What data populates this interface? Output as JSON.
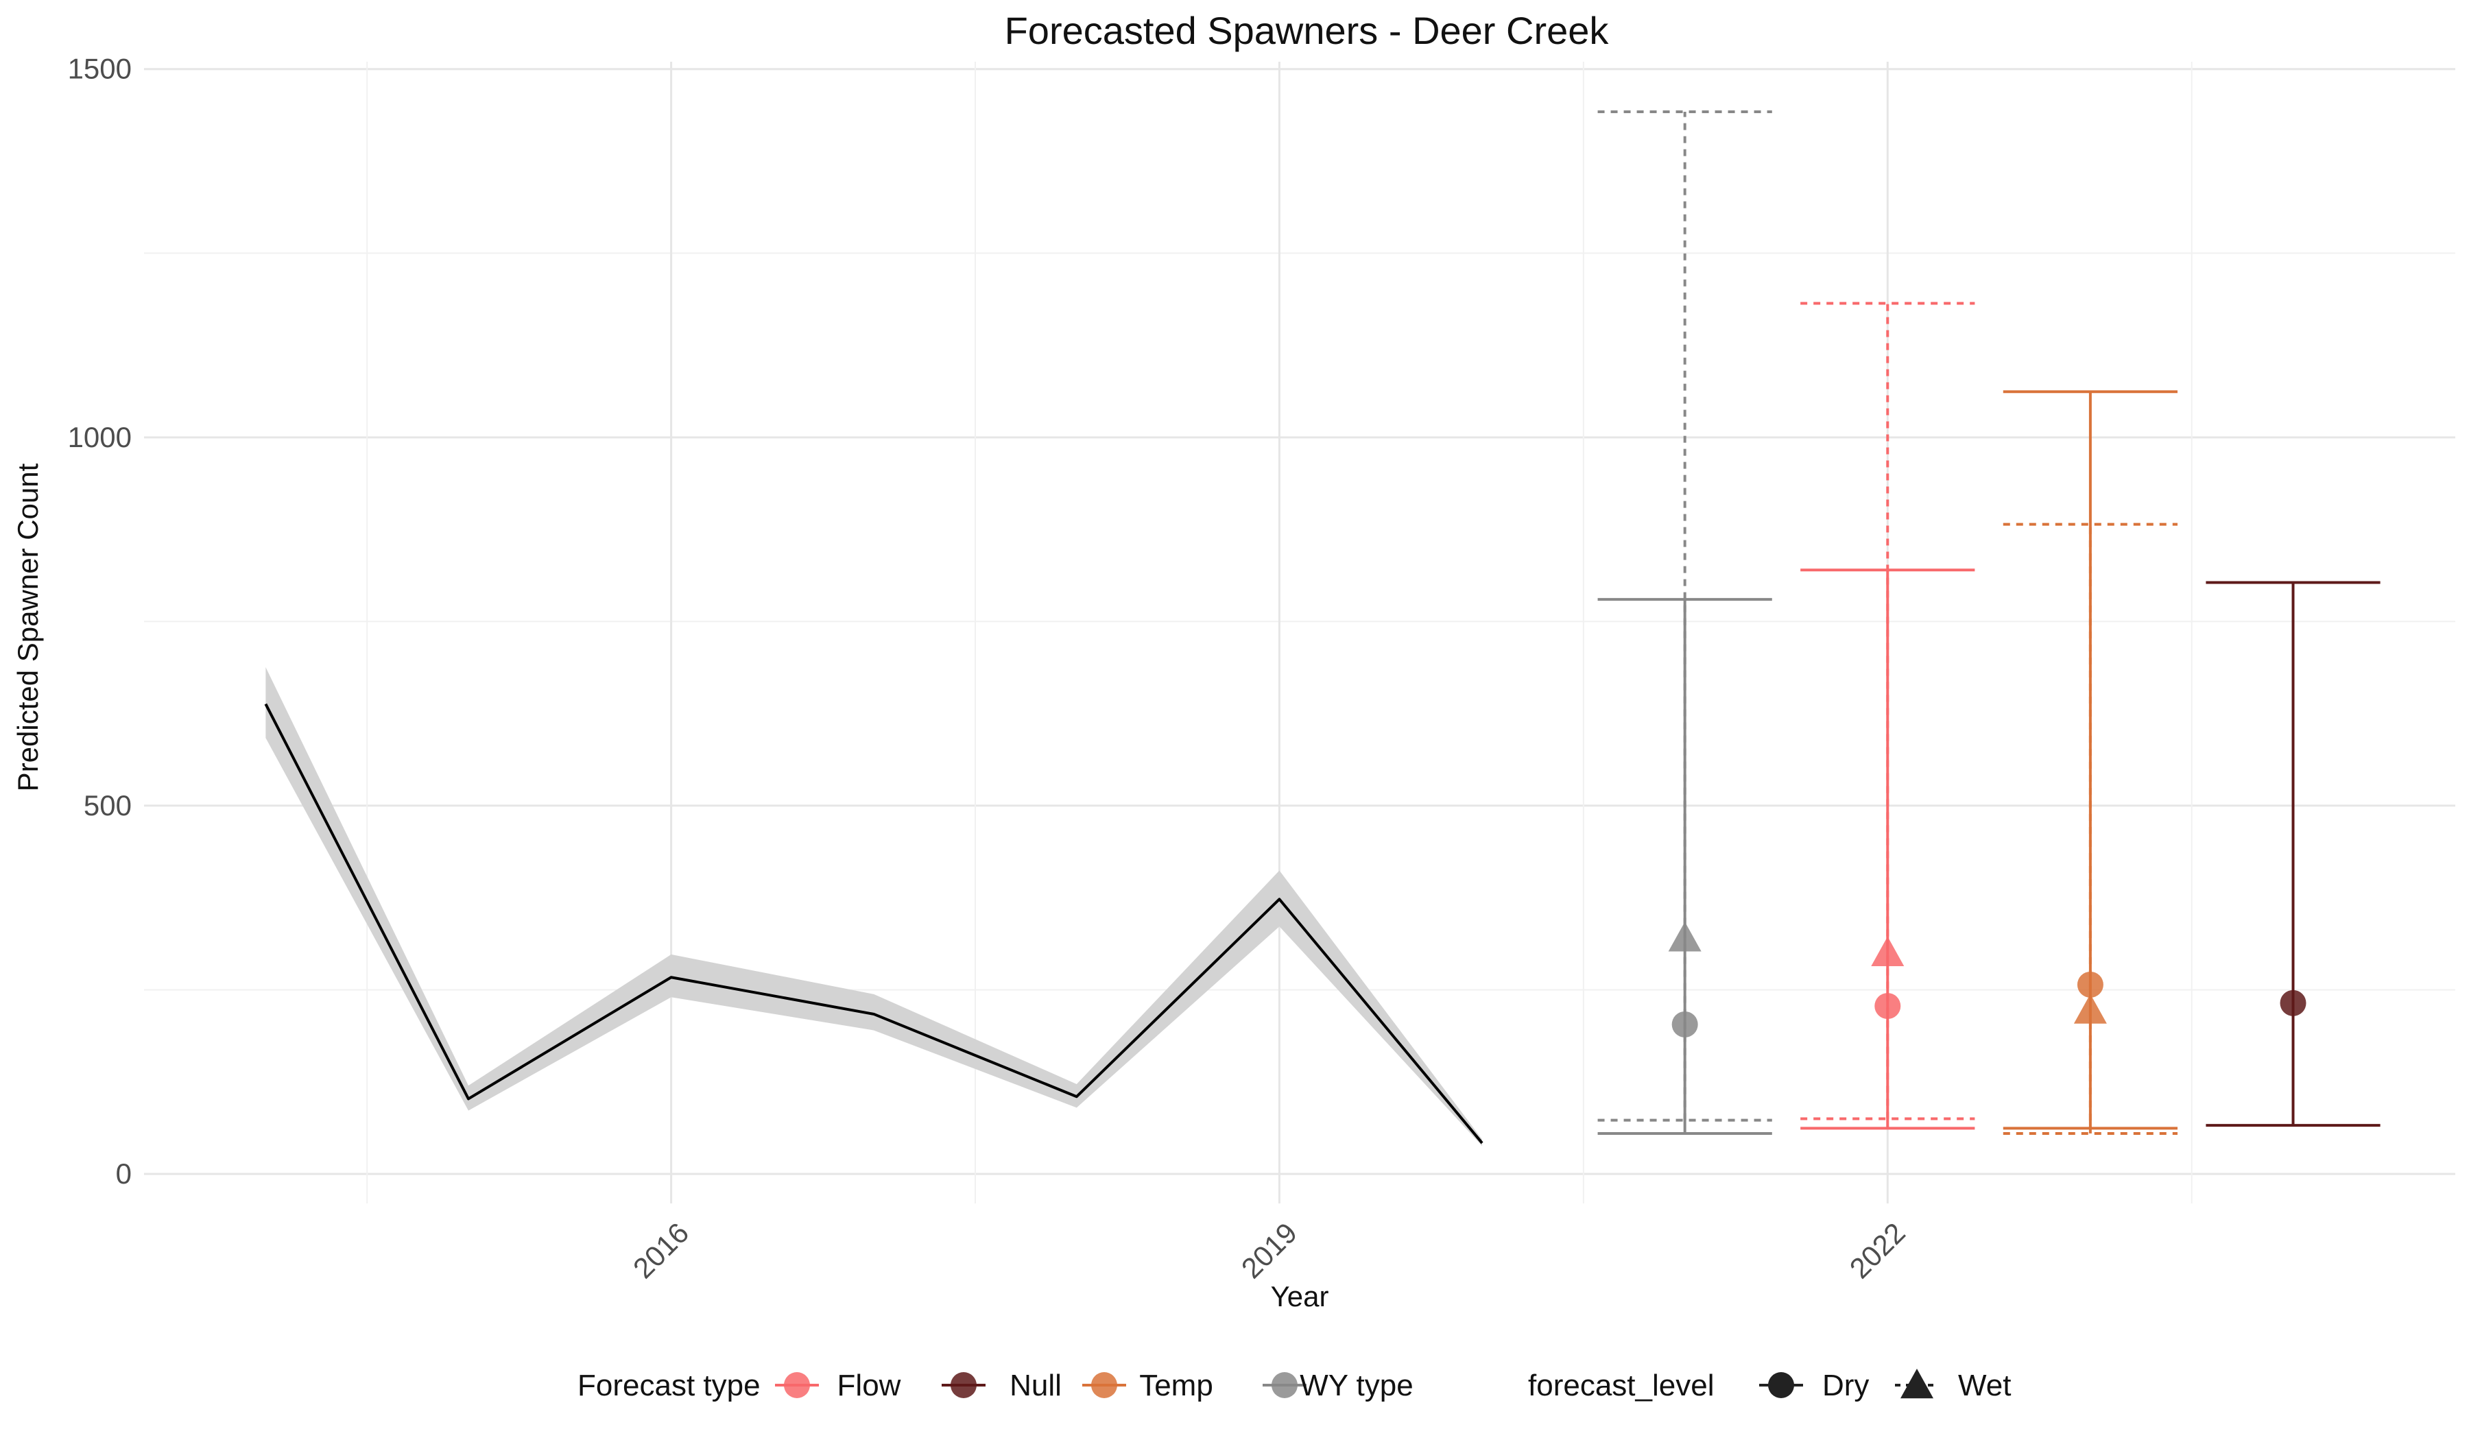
{
  "chart_data": {
    "type": "line",
    "title": "Forecasted Spawners - Deer Creek",
    "xlabel": "Year",
    "ylabel": "Predicted Spawner Count",
    "xlim": [
      2013.4,
      2024.8
    ],
    "ylim": [
      -40,
      1510
    ],
    "x_ticks": [
      2016,
      2019,
      2022
    ],
    "x_tick_labels": [
      "2016",
      "2019",
      "2022"
    ],
    "y_ticks": [
      0,
      500,
      1000,
      1500
    ],
    "y_tick_labels": [
      "0",
      "500",
      "1000",
      "1500"
    ],
    "grid": true,
    "legend_position": "bottom",
    "observed": {
      "x": [
        2014,
        2015,
        2016,
        2017,
        2018,
        2019,
        2020
      ],
      "y": [
        638,
        102,
        267,
        217,
        105,
        373,
        42
      ],
      "lower": [
        592,
        86,
        240,
        195,
        90,
        336,
        38
      ],
      "upper": [
        688,
        120,
        298,
        244,
        122,
        412,
        47
      ]
    },
    "series": [
      {
        "name": "WY type",
        "color": "#888888",
        "x": 2021,
        "dry": {
          "value": 203,
          "lower": 55,
          "upper": 780
        },
        "wet": {
          "value": 320,
          "lower": 73,
          "upper": 1442
        }
      },
      {
        "name": "Flow",
        "color": "#f8696b",
        "x": 2022,
        "dry": {
          "value": 228,
          "lower": 62,
          "upper": 820
        },
        "wet": {
          "value": 300,
          "lower": 75,
          "upper": 1182
        }
      },
      {
        "name": "Temp",
        "color": "#d9733a",
        "x": 2023,
        "dry": {
          "value": 257,
          "lower": 62,
          "upper": 1062
        },
        "wet": {
          "value": 222,
          "lower": 55,
          "upper": 882
        }
      },
      {
        "name": "Null",
        "color": "#5e1a1a",
        "x": 2024,
        "dry": {
          "value": 232,
          "lower": 66,
          "upper": 803
        },
        "wet": null
      }
    ],
    "legend": {
      "color_title": "Forecast type",
      "color_items": [
        {
          "name": "Flow",
          "color": "#f8696b"
        },
        {
          "name": "Null",
          "color": "#5e1a1a"
        },
        {
          "name": "Temp",
          "color": "#d9733a"
        },
        {
          "name": "WY type",
          "color": "#888888"
        }
      ],
      "level_title": "forecast_level",
      "level_items": [
        {
          "name": "Dry",
          "shape": "circle",
          "line": "solid"
        },
        {
          "name": "Wet",
          "shape": "triangle",
          "line": "dotted"
        }
      ]
    }
  }
}
